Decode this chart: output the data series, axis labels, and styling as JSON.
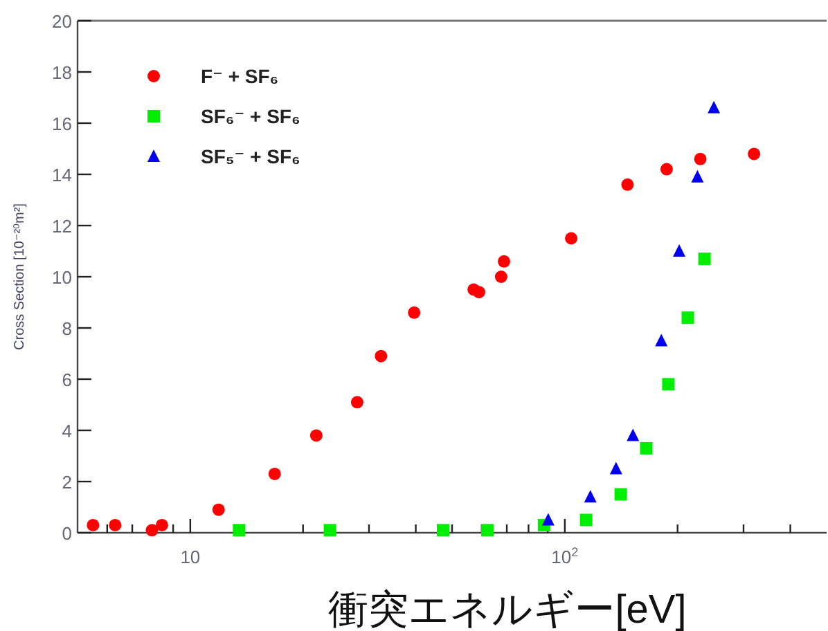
{
  "chart_data": {
    "type": "scatter",
    "xlabel": "衝突エネルギー[eV]",
    "ylabel": "Cross Section [10⁻²⁰m²]",
    "log": "x",
    "xlim": [
      5,
      500
    ],
    "ylim": [
      0,
      20
    ],
    "xticks": [
      {
        "value": 6,
        "label": null
      },
      {
        "value": 7,
        "label": null
      },
      {
        "value": 8,
        "label": null
      },
      {
        "value": 9,
        "label": null
      },
      10,
      {
        "value": 20,
        "label": null
      },
      {
        "value": 30,
        "label": null
      },
      {
        "value": 40,
        "label": null
      },
      {
        "value": 50,
        "label": null
      },
      {
        "value": 60,
        "label": null
      },
      {
        "value": 70,
        "label": null
      },
      {
        "value": 80,
        "label": null
      },
      {
        "value": 90,
        "label": null
      },
      {
        "value": 100,
        "label": "10$^{2}$"
      },
      {
        "value": 200,
        "label": null
      },
      {
        "value": 300,
        "label": null
      },
      {
        "value": 400,
        "label": null
      }
    ],
    "yticks": [
      0,
      2,
      4,
      6,
      8,
      10,
      12,
      14,
      16,
      18,
      20
    ],
    "legend": "top left",
    "grid": false,
    "series": [
      {
        "name": "F⁻ + SF₆",
        "color": "#ff0000",
        "marker": "circle",
        "x": [
          5.5,
          6.3,
          7.9,
          8.4,
          11.9,
          16.8,
          21.7,
          27.9,
          32.3,
          39.6,
          57.1,
          59.0,
          67.6,
          68.8,
          104,
          147,
          187,
          230,
          320
        ],
        "values": [
          0.3,
          0.3,
          0.1,
          0.3,
          0.9,
          2.3,
          3.8,
          5.1,
          6.9,
          8.6,
          9.5,
          9.4,
          10.0,
          10.6,
          11.5,
          13.6,
          14.2,
          14.6,
          14.8
        ]
      },
      {
        "name": "SF₆⁻ + SF₆",
        "color": "#00ee00",
        "marker": "square",
        "x": [
          13.5,
          23.6,
          47.3,
          62.1,
          88.0,
          114,
          141,
          165,
          189,
          213,
          236
        ],
        "values": [
          0.1,
          0.1,
          0.1,
          0.1,
          0.3,
          0.5,
          1.5,
          3.3,
          5.8,
          8.4,
          10.7
        ]
      },
      {
        "name": "SF₅⁻ + SF₆",
        "color": "#0000ee",
        "marker": "triangle",
        "x": [
          90.3,
          117,
          137,
          152,
          181,
          202,
          226,
          250
        ],
        "values": [
          0.5,
          1.4,
          2.5,
          3.8,
          7.5,
          11.0,
          13.9,
          16.6
        ]
      }
    ]
  }
}
